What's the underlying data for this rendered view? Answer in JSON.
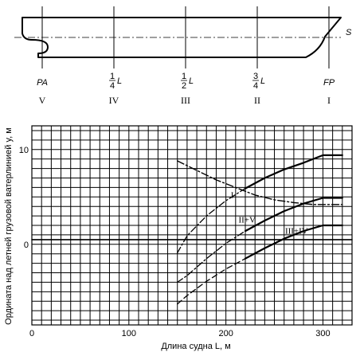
{
  "ship_diagram": {
    "sheer_label": "S",
    "stations": [
      {
        "pos": "PA",
        "roman": "V"
      },
      {
        "pos": "1/4 L",
        "num": "1",
        "den": "4",
        "var": "L",
        "roman": "IV"
      },
      {
        "pos": "1/2 L",
        "num": "1",
        "den": "2",
        "var": "L",
        "roman": "III"
      },
      {
        "pos": "3/4 L",
        "num": "3",
        "den": "4",
        "var": "L",
        "roman": "II"
      },
      {
        "pos": "FP",
        "roman": "I"
      }
    ]
  },
  "chart_data": {
    "type": "line",
    "xlabel": "Длина судна L, м",
    "ylabel": "Ордината над летней грузовой ватерлинией y, м",
    "xlim": [
      0,
      330
    ],
    "ylim": [
      -8.5,
      12.5
    ],
    "xticks": [
      0,
      100,
      200,
      300
    ],
    "yticks": [
      0,
      10
    ],
    "grid": true,
    "series": [
      {
        "name": "I",
        "style": "solid",
        "x": [
          150,
          160,
          180,
          200,
          220,
          240,
          260,
          280,
          300,
          320
        ],
        "y": [
          -0.9,
          0.9,
          3.0,
          4.6,
          5.9,
          7.0,
          7.9,
          8.6,
          9.4,
          9.4
        ]
      },
      {
        "name": "II+V",
        "style": "solid",
        "x": [
          150,
          160,
          180,
          200,
          220,
          240,
          260,
          280,
          300,
          320
        ],
        "y": [
          -4.0,
          -3.3,
          -1.5,
          0.1,
          1.4,
          2.5,
          3.5,
          4.3,
          4.9,
          4.9
        ]
      },
      {
        "name": "III+IV",
        "style": "solid",
        "x": [
          150,
          160,
          180,
          200,
          220,
          240,
          260,
          280,
          300,
          320
        ],
        "y": [
          -6.3,
          -5.4,
          -3.9,
          -2.6,
          -1.5,
          -0.4,
          0.6,
          1.4,
          2.0,
          2.0
        ]
      },
      {
        "name": "",
        "style": "dash-dot",
        "x": [
          150,
          170,
          190,
          210,
          230,
          250,
          270,
          290,
          300,
          320
        ],
        "y": [
          8.8,
          7.8,
          6.8,
          6.0,
          5.2,
          4.7,
          4.4,
          4.2,
          4.2,
          4.2
        ]
      },
      {
        "name": "",
        "style": "solid",
        "x": [
          0,
          330
        ],
        "y": [
          0.5,
          0.5
        ]
      }
    ]
  }
}
